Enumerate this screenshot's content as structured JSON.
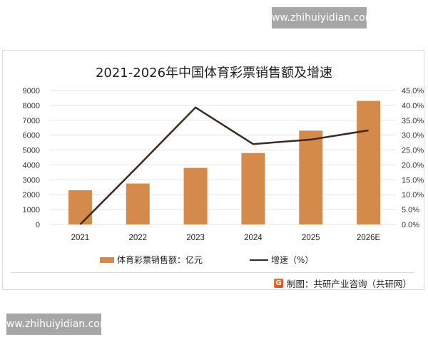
{
  "watermark": {
    "top": "www.zhihuiyidian.com",
    "bottom": "www.zhihuiyidian.com"
  },
  "legend": {
    "bar_label": "体育彩票销售额：亿元",
    "line_label": "增速（%）"
  },
  "source": {
    "icon": "gongyan-logo-icon",
    "text": "制图：共研产业咨询（共研网）"
  },
  "colors": {
    "bar": "#d48a4b",
    "line": "#3b2a20",
    "grid": "#e3e3e3"
  },
  "chart_data": {
    "type": "bar+line",
    "title": "2021-2026年中国体育彩票销售额及增速",
    "categories": [
      "2021",
      "2022",
      "2023",
      "2024",
      "2025",
      "2026E"
    ],
    "series": [
      {
        "name": "体育彩票销售额：亿元",
        "type": "bar",
        "axis": "left",
        "values": [
          2300,
          2750,
          3800,
          4800,
          6300,
          8300
        ]
      },
      {
        "name": "增速（%）",
        "type": "line",
        "axis": "right",
        "values": [
          0.0,
          19.5,
          39.3,
          27.0,
          28.5,
          31.6
        ]
      }
    ],
    "y_left": {
      "ylim": [
        0,
        9000
      ],
      "ticks": [
        "0",
        "1000",
        "2000",
        "3000",
        "4000",
        "5000",
        "6000",
        "7000",
        "8000",
        "9000"
      ]
    },
    "y_right": {
      "ylim": [
        0,
        45
      ],
      "ticks": [
        "0.0%",
        "5.0%",
        "10.0%",
        "15.0%",
        "20.0%",
        "25.0%",
        "30.0%",
        "35.0%",
        "40.0%",
        "45.0%"
      ]
    },
    "xlabel": "",
    "ylabel": "",
    "grid": true,
    "legend_position": "bottom"
  }
}
